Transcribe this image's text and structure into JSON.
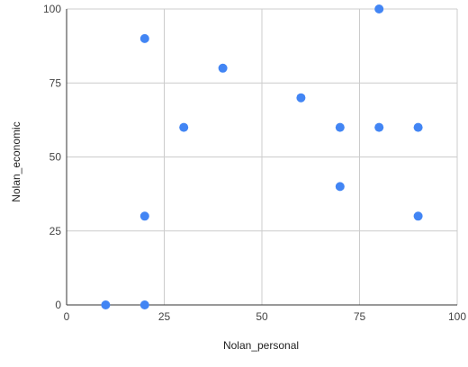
{
  "chart_data": {
    "type": "scatter",
    "title": "",
    "xlabel": "Nolan_personal",
    "ylabel": "Nolan_economic",
    "xlim": [
      0,
      100
    ],
    "ylim": [
      0,
      100
    ],
    "x_ticks": [
      "0",
      "25",
      "50",
      "75",
      "100"
    ],
    "y_ticks": [
      "0",
      "25",
      "50",
      "75",
      "100"
    ],
    "grid": true,
    "legend": "none",
    "point_color": "#4285f4",
    "series": [
      {
        "points": [
          {
            "x": 10,
            "y": 0
          },
          {
            "x": 20,
            "y": 0
          },
          {
            "x": 20,
            "y": 30
          },
          {
            "x": 20,
            "y": 90
          },
          {
            "x": 30,
            "y": 60
          },
          {
            "x": 40,
            "y": 80
          },
          {
            "x": 60,
            "y": 70
          },
          {
            "x": 70,
            "y": 60
          },
          {
            "x": 70,
            "y": 40
          },
          {
            "x": 80,
            "y": 100
          },
          {
            "x": 80,
            "y": 60
          },
          {
            "x": 90,
            "y": 60
          },
          {
            "x": 90,
            "y": 30
          }
        ]
      }
    ]
  }
}
